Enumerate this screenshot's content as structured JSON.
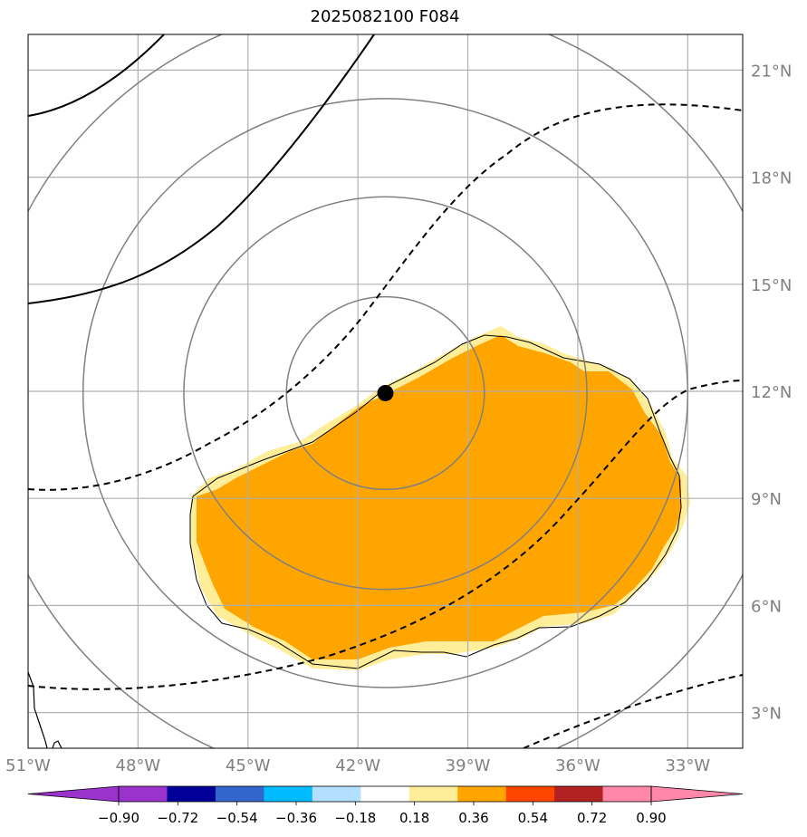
{
  "title": "2025082100 F084",
  "map": {
    "lon_range": [
      -51,
      -31.5
    ],
    "lat_range": [
      2,
      22
    ],
    "lon_ticks": [
      {
        "value": -51,
        "label": "51°W"
      },
      {
        "value": -48,
        "label": "48°W"
      },
      {
        "value": -45,
        "label": "45°W"
      },
      {
        "value": -42,
        "label": "42°W"
      },
      {
        "value": -39,
        "label": "39°W"
      },
      {
        "value": -36,
        "label": "36°W"
      },
      {
        "value": -33,
        "label": "33°W"
      }
    ],
    "lat_ticks": [
      {
        "value": 3,
        "label": "3°N"
      },
      {
        "value": 6,
        "label": "6°N"
      },
      {
        "value": 9,
        "label": "9°N"
      },
      {
        "value": 12,
        "label": "12°N"
      },
      {
        "value": 15,
        "label": "15°N"
      },
      {
        "value": 18,
        "label": "18°N"
      },
      {
        "value": 21,
        "label": "21°N"
      }
    ],
    "center": {
      "lon": -41.25,
      "lat": 11.95
    },
    "range_rings_deg": [
      2.7,
      5.5,
      8.25,
      11.0
    ],
    "grid": true,
    "colors": {
      "grid": "#b0b0b0",
      "rings": "#808080",
      "fill_light": "#ffee99",
      "fill_main": "#ffa500",
      "contour": "#000000"
    }
  },
  "colorbar": {
    "levels": [
      "−0.90",
      "−0.72",
      "−0.54",
      "−0.36",
      "−0.18",
      "0.18",
      "0.36",
      "0.54",
      "0.72",
      "0.90"
    ],
    "colors": [
      "#9933cc",
      "#9933cc",
      "#000099",
      "#3366cc",
      "#00bbff",
      "#b3e0ff",
      "#ffffff",
      "#ffee99",
      "#ffa500",
      "#ff4500",
      "#b22222",
      "#ff88aa",
      "#ff88aa"
    ]
  }
}
